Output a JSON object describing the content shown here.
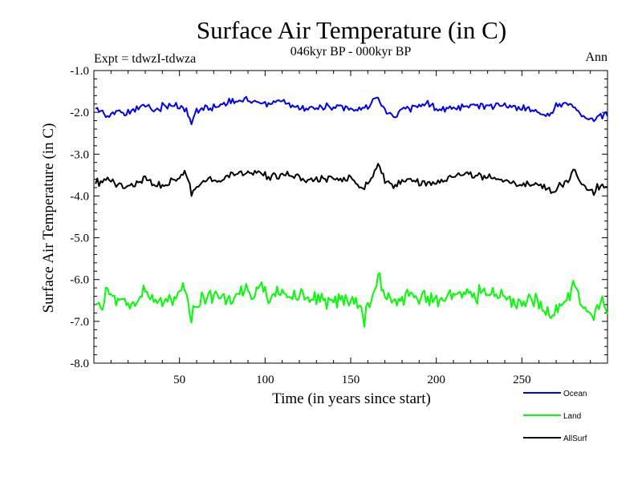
{
  "chart_data": {
    "type": "line",
    "title": "Surface Air Temperature (in C)",
    "subtitle": "046kyr BP - 000kyr BP",
    "experiment_label": "Expt = tdwzI-tdwza",
    "season_label": "Ann",
    "xlabel": "Time (in years since start)",
    "ylabel": "Surface Air Temperature (in C)",
    "xlim": [
      0,
      300
    ],
    "ylim": [
      -8.0,
      -1.0
    ],
    "x_ticks": [
      50,
      100,
      150,
      200,
      250
    ],
    "y_ticks": [
      -1.0,
      -2.0,
      -3.0,
      -4.0,
      -5.0,
      -6.0,
      -7.0,
      -8.0
    ],
    "y_tick_labels": [
      "-1.0",
      "-2.0",
      "-3.0",
      "-4.0",
      "-5.0",
      "-6.0",
      "-7.0",
      "-8.0"
    ],
    "grid": false,
    "legend_position": "bottom-right",
    "n_points": 300,
    "series": [
      {
        "name": "Ocean",
        "color": "#0000ff",
        "mean": -1.9,
        "noise": 0.13,
        "keypoints": [
          [
            1,
            -1.85
          ],
          [
            3,
            -1.95
          ],
          [
            8,
            -2.08
          ],
          [
            12,
            -2.0
          ],
          [
            18,
            -2.05
          ],
          [
            25,
            -1.92
          ],
          [
            31,
            -1.8
          ],
          [
            35,
            -1.95
          ],
          [
            40,
            -1.85
          ],
          [
            48,
            -1.82
          ],
          [
            53,
            -1.95
          ],
          [
            56,
            -2.12
          ],
          [
            57,
            -2.28
          ],
          [
            60,
            -1.95
          ],
          [
            70,
            -1.88
          ],
          [
            80,
            -1.75
          ],
          [
            88,
            -1.72
          ],
          [
            95,
            -1.72
          ],
          [
            100,
            -1.78
          ],
          [
            110,
            -1.75
          ],
          [
            120,
            -1.88
          ],
          [
            130,
            -1.9
          ],
          [
            140,
            -1.87
          ],
          [
            150,
            -1.92
          ],
          [
            160,
            -1.9
          ],
          [
            165,
            -1.62
          ],
          [
            170,
            -1.95
          ],
          [
            175,
            -2.12
          ],
          [
            180,
            -1.95
          ],
          [
            190,
            -1.85
          ],
          [
            195,
            -1.78
          ],
          [
            200,
            -1.95
          ],
          [
            210,
            -1.85
          ],
          [
            220,
            -1.85
          ],
          [
            230,
            -1.83
          ],
          [
            240,
            -1.82
          ],
          [
            250,
            -1.92
          ],
          [
            258,
            -1.98
          ],
          [
            265,
            -2.1
          ],
          [
            270,
            -1.85
          ],
          [
            278,
            -1.8
          ],
          [
            282,
            -1.95
          ],
          [
            288,
            -2.1
          ],
          [
            292,
            -2.18
          ],
          [
            296,
            -2.05
          ],
          [
            299,
            -2.05
          ]
        ]
      },
      {
        "name": "Land",
        "color": "#00ff00",
        "mean": -6.5,
        "noise": 0.3,
        "keypoints": [
          [
            1,
            -6.45
          ],
          [
            4,
            -6.55
          ],
          [
            8,
            -6.2
          ],
          [
            13,
            -6.5
          ],
          [
            18,
            -6.6
          ],
          [
            25,
            -6.5
          ],
          [
            31,
            -6.25
          ],
          [
            36,
            -6.55
          ],
          [
            42,
            -6.55
          ],
          [
            47,
            -6.4
          ],
          [
            52,
            -6.25
          ],
          [
            55,
            -6.5
          ],
          [
            57,
            -6.9
          ],
          [
            60,
            -6.6
          ],
          [
            66,
            -6.3
          ],
          [
            72,
            -6.4
          ],
          [
            78,
            -6.55
          ],
          [
            84,
            -6.3
          ],
          [
            92,
            -6.3
          ],
          [
            98,
            -6.2
          ],
          [
            103,
            -6.4
          ],
          [
            110,
            -6.3
          ],
          [
            118,
            -6.4
          ],
          [
            125,
            -6.5
          ],
          [
            133,
            -6.4
          ],
          [
            140,
            -6.45
          ],
          [
            148,
            -6.5
          ],
          [
            154,
            -6.6
          ],
          [
            158,
            -6.9
          ],
          [
            162,
            -6.6
          ],
          [
            166,
            -5.85
          ],
          [
            170,
            -6.35
          ],
          [
            176,
            -6.6
          ],
          [
            182,
            -6.3
          ],
          [
            188,
            -6.4
          ],
          [
            195,
            -6.5
          ],
          [
            202,
            -6.45
          ],
          [
            210,
            -6.3
          ],
          [
            218,
            -6.3
          ],
          [
            225,
            -6.35
          ],
          [
            232,
            -6.35
          ],
          [
            238,
            -6.4
          ],
          [
            245,
            -6.55
          ],
          [
            250,
            -6.55
          ],
          [
            258,
            -6.5
          ],
          [
            263,
            -6.75
          ],
          [
            267,
            -7.0
          ],
          [
            272,
            -6.6
          ],
          [
            278,
            -6.35
          ],
          [
            280,
            -5.9
          ],
          [
            284,
            -6.6
          ],
          [
            288,
            -6.8
          ],
          [
            292,
            -6.85
          ],
          [
            296,
            -6.45
          ],
          [
            299,
            -6.7
          ]
        ]
      },
      {
        "name": "AllSurf",
        "color": "#000000",
        "mean": -3.6,
        "noise": 0.14,
        "keypoints": [
          [
            1,
            -3.65
          ],
          [
            4,
            -3.7
          ],
          [
            8,
            -3.55
          ],
          [
            12,
            -3.7
          ],
          [
            18,
            -3.8
          ],
          [
            25,
            -3.7
          ],
          [
            31,
            -3.55
          ],
          [
            36,
            -3.75
          ],
          [
            42,
            -3.75
          ],
          [
            48,
            -3.6
          ],
          [
            53,
            -3.5
          ],
          [
            56,
            -3.7
          ],
          [
            57,
            -3.98
          ],
          [
            60,
            -3.78
          ],
          [
            66,
            -3.6
          ],
          [
            72,
            -3.65
          ],
          [
            78,
            -3.6
          ],
          [
            84,
            -3.45
          ],
          [
            92,
            -3.45
          ],
          [
            98,
            -3.45
          ],
          [
            103,
            -3.55
          ],
          [
            110,
            -3.5
          ],
          [
            118,
            -3.55
          ],
          [
            125,
            -3.65
          ],
          [
            133,
            -3.55
          ],
          [
            140,
            -3.6
          ],
          [
            148,
            -3.6
          ],
          [
            154,
            -3.7
          ],
          [
            158,
            -3.8
          ],
          [
            162,
            -3.65
          ],
          [
            166,
            -3.25
          ],
          [
            170,
            -3.6
          ],
          [
            176,
            -3.8
          ],
          [
            182,
            -3.6
          ],
          [
            188,
            -3.65
          ],
          [
            195,
            -3.7
          ],
          [
            202,
            -3.65
          ],
          [
            210,
            -3.55
          ],
          [
            218,
            -3.5
          ],
          [
            225,
            -3.55
          ],
          [
            232,
            -3.55
          ],
          [
            238,
            -3.6
          ],
          [
            245,
            -3.7
          ],
          [
            250,
            -3.7
          ],
          [
            258,
            -3.7
          ],
          [
            263,
            -3.8
          ],
          [
            268,
            -3.95
          ],
          [
            272,
            -3.75
          ],
          [
            278,
            -3.55
          ],
          [
            280,
            -3.35
          ],
          [
            284,
            -3.7
          ],
          [
            288,
            -3.85
          ],
          [
            292,
            -3.9
          ],
          [
            296,
            -3.75
          ],
          [
            299,
            -3.8
          ]
        ]
      }
    ]
  }
}
